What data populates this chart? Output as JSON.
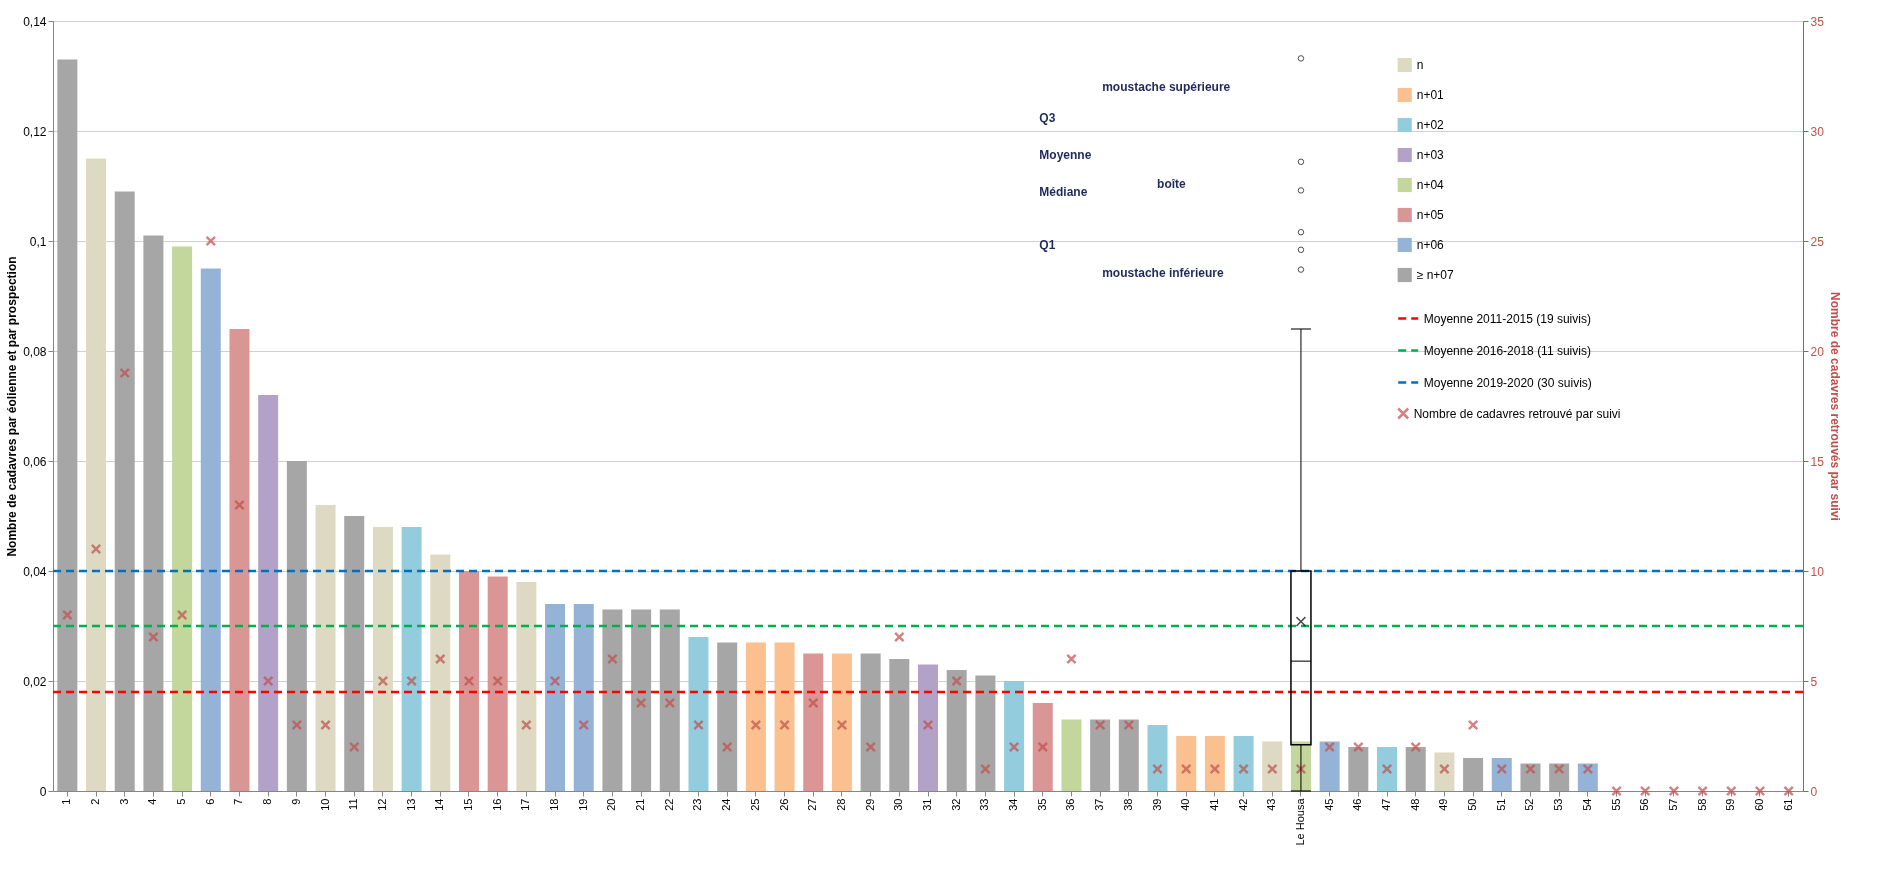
{
  "chart_data": {
    "type": "bar",
    "ylabel": "Nombre de cadavres par éolienne et par prospection",
    "y2label": "Nombre de cadavres retrouvés par suivi",
    "categories": [
      "1",
      "2",
      "3",
      "4",
      "5",
      "6",
      "7",
      "8",
      "9",
      "10",
      "11",
      "12",
      "13",
      "14",
      "15",
      "16",
      "17",
      "18",
      "19",
      "20",
      "21",
      "22",
      "23",
      "24",
      "25",
      "26",
      "27",
      "28",
      "29",
      "30",
      "31",
      "32",
      "33",
      "34",
      "35",
      "36",
      "37",
      "38",
      "39",
      "40",
      "41",
      "42",
      "43",
      "Le Housa",
      "45",
      "46",
      "47",
      "48",
      "49",
      "50",
      "51",
      "52",
      "53",
      "54",
      "55",
      "56",
      "57",
      "58",
      "59",
      "60",
      "61"
    ],
    "ylim": [
      0,
      0.14
    ],
    "yticks": [
      0,
      {
        "value": 0.02,
        "label": "0,02"
      },
      {
        "value": 0.04,
        "label": "0,04"
      },
      {
        "value": 0.06,
        "label": "0,06"
      },
      {
        "value": 0.08,
        "label": "0,08"
      },
      {
        "value": 0.1,
        "label": "0,1"
      },
      {
        "value": 0.12,
        "label": "0,12"
      },
      {
        "value": 0.14,
        "label": "0,14"
      }
    ],
    "y2lim": [
      0,
      35
    ],
    "y2ticks": [
      0,
      5,
      10,
      15,
      20,
      25,
      30,
      35
    ],
    "grid": "y",
    "legend": "top right",
    "marker": "cross",
    "series": [
      {
        "name": "n",
        "color": "#ddd9c3",
        "values": [
          null,
          0.115,
          null,
          null,
          null,
          null,
          null,
          null,
          null,
          0.052,
          null,
          0.048,
          null,
          0.043,
          null,
          null,
          0.038,
          null,
          null,
          null,
          null,
          null,
          null,
          null,
          null,
          null,
          null,
          null,
          null,
          null,
          null,
          null,
          null,
          null,
          null,
          null,
          null,
          null,
          null,
          null,
          null,
          null,
          0.009,
          null,
          null,
          null,
          null,
          null,
          0.007,
          null,
          null,
          null,
          null,
          null,
          null,
          null,
          null,
          null,
          null,
          null,
          null
        ]
      },
      {
        "name": "n+01",
        "color": "#fac090",
        "values": [
          null,
          null,
          null,
          null,
          null,
          null,
          null,
          null,
          null,
          null,
          null,
          null,
          null,
          null,
          null,
          null,
          null,
          null,
          null,
          null,
          null,
          null,
          null,
          null,
          0.027,
          0.027,
          null,
          0.025,
          null,
          null,
          null,
          null,
          null,
          null,
          null,
          null,
          null,
          null,
          null,
          0.01,
          0.01,
          null,
          null,
          null,
          null,
          null,
          null,
          null,
          null,
          null,
          null,
          null,
          null,
          null,
          null,
          null,
          null,
          null,
          null,
          null,
          null
        ]
      },
      {
        "name": "n+02",
        "color": "#93cddd",
        "values": [
          null,
          null,
          null,
          null,
          null,
          null,
          null,
          null,
          null,
          null,
          null,
          null,
          0.048,
          null,
          null,
          null,
          null,
          null,
          null,
          null,
          null,
          null,
          0.028,
          null,
          null,
          null,
          null,
          null,
          null,
          null,
          null,
          null,
          null,
          0.02,
          null,
          null,
          null,
          null,
          0.012,
          null,
          null,
          0.01,
          null,
          null,
          null,
          null,
          0.008,
          null,
          null,
          null,
          null,
          null,
          null,
          null,
          null,
          null,
          null,
          null,
          null,
          null,
          null
        ]
      },
      {
        "name": "n+03",
        "color": "#b3a2c7",
        "values": [
          null,
          null,
          null,
          null,
          null,
          null,
          null,
          0.072,
          null,
          null,
          null,
          null,
          null,
          null,
          null,
          null,
          null,
          null,
          null,
          null,
          null,
          null,
          null,
          null,
          null,
          null,
          null,
          null,
          null,
          null,
          0.023,
          null,
          null,
          null,
          null,
          null,
          null,
          null,
          null,
          null,
          null,
          null,
          null,
          null,
          null,
          null,
          null,
          null,
          null,
          null,
          null,
          null,
          null,
          null,
          null,
          null,
          null,
          null,
          null,
          null,
          null
        ]
      },
      {
        "name": "n+04",
        "color": "#c3d69b",
        "values": [
          null,
          null,
          null,
          null,
          0.099,
          null,
          null,
          null,
          null,
          null,
          null,
          null,
          null,
          null,
          null,
          null,
          null,
          null,
          null,
          null,
          null,
          null,
          null,
          null,
          null,
          null,
          null,
          null,
          null,
          null,
          null,
          null,
          null,
          null,
          null,
          0.013,
          null,
          null,
          null,
          null,
          null,
          null,
          null,
          0.009,
          null,
          null,
          null,
          null,
          null,
          null,
          null,
          null,
          null,
          null,
          null,
          null,
          null,
          null,
          null,
          null,
          null
        ]
      },
      {
        "name": "n+05",
        "color": "#d99694",
        "values": [
          null,
          null,
          null,
          null,
          null,
          null,
          0.084,
          null,
          null,
          null,
          null,
          null,
          null,
          null,
          0.04,
          0.039,
          null,
          null,
          null,
          null,
          null,
          null,
          null,
          null,
          null,
          null,
          0.025,
          null,
          null,
          null,
          null,
          null,
          null,
          null,
          0.016,
          null,
          null,
          null,
          null,
          null,
          null,
          null,
          null,
          null,
          null,
          null,
          null,
          null,
          null,
          null,
          null,
          null,
          null,
          null,
          null,
          null,
          null,
          null,
          null,
          null,
          null
        ]
      },
      {
        "name": "n+06",
        "color": "#95b3d7",
        "values": [
          null,
          null,
          null,
          null,
          null,
          0.095,
          null,
          null,
          null,
          null,
          null,
          null,
          null,
          null,
          null,
          null,
          null,
          0.034,
          0.034,
          null,
          null,
          null,
          null,
          null,
          null,
          null,
          null,
          null,
          null,
          null,
          null,
          null,
          null,
          null,
          null,
          null,
          null,
          null,
          null,
          null,
          null,
          null,
          null,
          null,
          0.009,
          null,
          null,
          null,
          null,
          null,
          0.006,
          null,
          null,
          0.005,
          null,
          null,
          null,
          null,
          null,
          null,
          null
        ]
      },
      {
        "name": "≥ n+07",
        "color": "#a6a6a6",
        "values": [
          0.133,
          null,
          0.109,
          0.101,
          null,
          null,
          null,
          null,
          0.06,
          null,
          0.05,
          null,
          null,
          null,
          null,
          null,
          null,
          null,
          null,
          0.033,
          0.033,
          0.033,
          null,
          0.027,
          null,
          null,
          null,
          null,
          0.025,
          0.024,
          null,
          0.022,
          0.021,
          null,
          null,
          null,
          0.013,
          0.013,
          null,
          null,
          null,
          null,
          null,
          null,
          null,
          0.008,
          null,
          0.008,
          null,
          0.006,
          null,
          0.005,
          0.005,
          null,
          null,
          null,
          null,
          null,
          null,
          null,
          null
        ]
      },
      {
        "name": "Nombre de cadavres retrouvé par suivi",
        "type": "scatter",
        "axis": "y2",
        "color": "#c0504d",
        "values": [
          8,
          11,
          19,
          7,
          8,
          25,
          13,
          5,
          3,
          3,
          2,
          5,
          5,
          6,
          5,
          5,
          3,
          5,
          3,
          6,
          4,
          4,
          3,
          2,
          3,
          3,
          4,
          3,
          2,
          7,
          3,
          5,
          1,
          2,
          2,
          6,
          3,
          3,
          1,
          1,
          1,
          1,
          1,
          1,
          2,
          2,
          1,
          2,
          1,
          3,
          1,
          1,
          1,
          1,
          0,
          0,
          0,
          0,
          0,
          0,
          0
        ]
      },
      {
        "type": "box",
        "axis": "y2",
        "color": "#000000",
        "boxes": [
          null,
          null,
          null,
          null,
          null,
          null,
          null,
          null,
          null,
          null,
          null,
          null,
          null,
          null,
          null,
          null,
          null,
          null,
          null,
          null,
          null,
          null,
          null,
          null,
          null,
          null,
          null,
          null,
          null,
          null,
          null,
          null,
          null,
          null,
          null,
          null,
          null,
          null,
          null,
          null,
          null,
          null,
          null,
          {
            "low": 0,
            "q1": 2.1,
            "median": 5.9,
            "q3": 10,
            "high": 21,
            "mean": 7.7,
            "outliers": [
              23.7,
              24.6,
              25.4,
              27.3,
              28.6,
              33.3
            ]
          },
          null,
          null,
          null,
          null,
          null,
          null,
          null,
          null,
          null,
          null,
          null,
          null,
          null,
          null,
          null,
          null,
          null
        ]
      }
    ],
    "ref_lines": [
      {
        "axis": "y",
        "value": 0.018,
        "label": "Moyenne 2011-2015 (19 suivis)",
        "color": "#ff0000",
        "line_style": "dashed"
      },
      {
        "axis": "y",
        "value": 0.03,
        "label": "Moyenne 2016-2018 (11 suivis)",
        "color": "#00b050",
        "line_style": "dashed"
      },
      {
        "axis": "y",
        "value": 0.04,
        "label": "Moyenne 2019-2020 (30 suivis)",
        "color": "#0070c0",
        "line_style": "dashed"
      }
    ],
    "annotations": [
      "moustache supérieure",
      "Q3",
      "Moyenne",
      "Médiane",
      "boîte",
      "Q1",
      "moustache inférieure"
    ]
  }
}
